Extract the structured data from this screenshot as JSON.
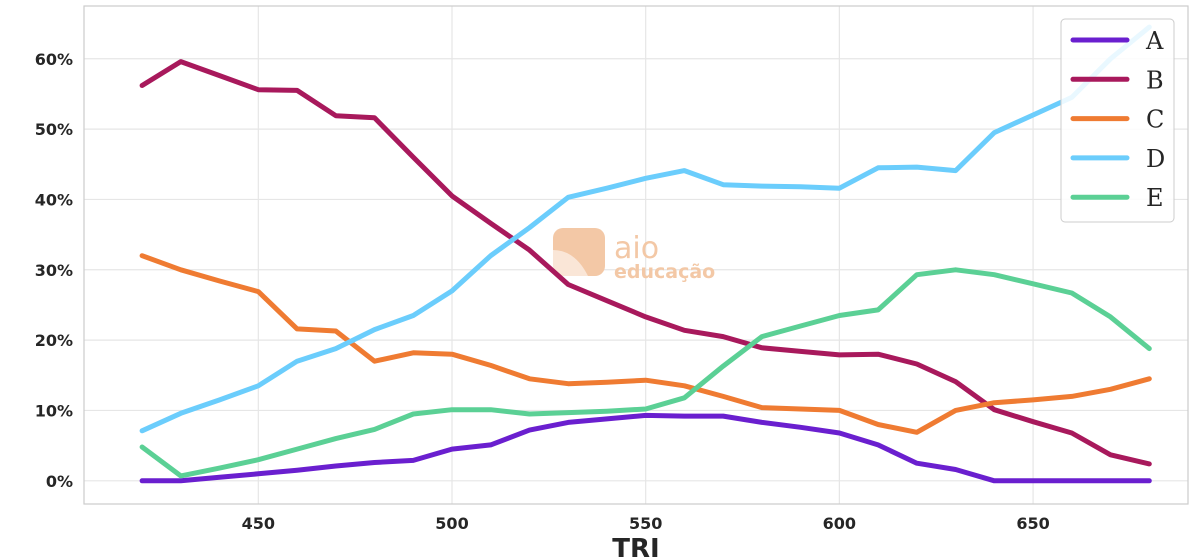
{
  "watermark": {
    "line1": "aio",
    "line2": "educação"
  },
  "chart_data": {
    "type": "line",
    "title": "",
    "xlabel": "TRI",
    "ylabel": "",
    "xlim": [
      405,
      690
    ],
    "ylim": [
      -0.033,
      0.675
    ],
    "xticks": [
      450,
      500,
      550,
      600,
      650
    ],
    "yticks": [
      0,
      0.1,
      0.2,
      0.3,
      0.4,
      0.5,
      0.6
    ],
    "ytick_labels": [
      "0%",
      "10%",
      "20%",
      "30%",
      "40%",
      "50%",
      "60%"
    ],
    "grid": true,
    "legend_position": "top-right",
    "x": [
      420,
      430,
      440,
      450,
      460,
      470,
      480,
      490,
      500,
      510,
      520,
      530,
      540,
      550,
      560,
      570,
      580,
      590,
      600,
      610,
      620,
      630,
      640,
      650,
      660,
      670,
      680
    ],
    "series": [
      {
        "name": "A",
        "color": "#6a1fcf",
        "values": [
          0.0,
          0.0,
          0.005,
          0.01,
          0.015,
          0.021,
          0.026,
          0.029,
          0.045,
          0.051,
          0.072,
          0.083,
          0.088,
          0.093,
          0.092,
          0.092,
          0.083,
          0.076,
          0.068,
          0.051,
          0.025,
          0.016,
          0.0,
          0.0,
          0.0,
          0.0,
          0.0
        ]
      },
      {
        "name": "B",
        "color": "#a8195c",
        "values": [
          0.562,
          0.596,
          0.576,
          0.556,
          0.555,
          0.519,
          0.516,
          0.46,
          0.405,
          0.366,
          0.328,
          0.279,
          0.256,
          0.233,
          0.214,
          0.205,
          0.189,
          0.184,
          0.179,
          0.18,
          0.166,
          0.141,
          0.101,
          0.084,
          0.068,
          0.037,
          0.024
        ]
      },
      {
        "name": "C",
        "color": "#ef7b32",
        "values": [
          0.32,
          0.3,
          0.284,
          0.269,
          0.216,
          0.213,
          0.17,
          0.182,
          0.18,
          0.164,
          0.145,
          0.138,
          0.14,
          0.143,
          0.135,
          0.12,
          0.104,
          0.102,
          0.1,
          0.08,
          0.069,
          0.1,
          0.111,
          0.115,
          0.12,
          0.13,
          0.145
        ]
      },
      {
        "name": "D",
        "color": "#6bcdfc",
        "values": [
          0.071,
          0.096,
          0.115,
          0.135,
          0.17,
          0.188,
          0.215,
          0.235,
          0.27,
          0.32,
          0.36,
          0.403,
          0.416,
          0.43,
          0.441,
          0.421,
          0.419,
          0.418,
          0.416,
          0.445,
          0.446,
          0.441,
          0.495,
          0.52,
          0.545,
          0.6,
          0.645
        ]
      },
      {
        "name": "E",
        "color": "#5bd095",
        "values": [
          0.048,
          0.007,
          0.018,
          0.03,
          0.045,
          0.06,
          0.073,
          0.095,
          0.101,
          0.101,
          0.095,
          0.097,
          0.099,
          0.102,
          0.118,
          0.163,
          0.205,
          0.22,
          0.235,
          0.243,
          0.293,
          0.3,
          0.293,
          0.28,
          0.267,
          0.233,
          0.188
        ]
      }
    ]
  }
}
